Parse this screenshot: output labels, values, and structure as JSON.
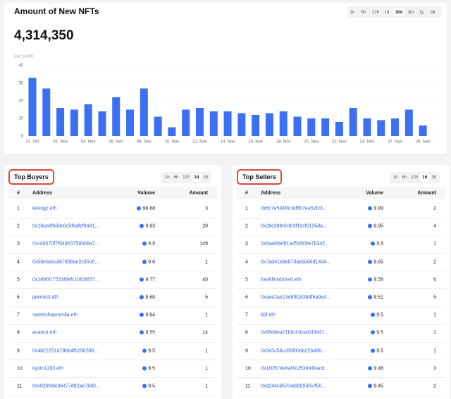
{
  "chart_data": {
    "type": "bar",
    "title": "Amount of New NFTs",
    "total": "4,314,350",
    "unit": "Unit: 10,000",
    "periods": [
      "1h",
      "6h",
      "12h",
      "1d",
      "30d",
      "3m",
      "1y",
      "All"
    ],
    "selected": "30d",
    "categories": [
      "31. Oct",
      null,
      "02. Nov",
      null,
      "04. Nov",
      null,
      "06. Nov",
      null,
      "08. Nov",
      null,
      "10. Nov",
      null,
      "12. Nov",
      null,
      "14. Nov",
      null,
      "16. Nov",
      null,
      "18. Nov",
      null,
      "20. Nov",
      null,
      "22. Nov",
      null,
      "24. Nov",
      null,
      "27. Nov",
      null,
      "29. Nov"
    ],
    "values": [
      33,
      27,
      16,
      15,
      18,
      14,
      22,
      15,
      27,
      11,
      5,
      15,
      16,
      14,
      14,
      13,
      12,
      13,
      14,
      11,
      10,
      10,
      8,
      16,
      10,
      9,
      10,
      15,
      6
    ],
    "color": "#3d6ff5",
    "ylim": [
      0,
      40
    ],
    "yticks": [
      0,
      10,
      20,
      30,
      40
    ],
    "grid": true
  },
  "tables": [
    {
      "title": "Top Buyers",
      "periods": [
        "1h",
        "6h",
        "12h",
        "1d",
        "3d"
      ],
      "selected": "1d",
      "columns": [
        "#",
        "Address",
        "Volume",
        "Amount"
      ],
      "rows": [
        [
          1,
          "keungz.eth",
          98.88,
          3
        ],
        [
          2,
          "0x18ae8f669c0c5f8afef9441...",
          9.93,
          20
        ],
        [
          3,
          "0xc48b70f7f04963756b08a7...",
          9.9,
          149
        ],
        [
          4,
          "0x58e6a5cd87d38ae2c3500...",
          9.8,
          1
        ],
        [
          5,
          "0x2896f175338fefc10838f37...",
          9.77,
          40
        ],
        [
          6,
          "jawniest.eth",
          9.68,
          5
        ],
        [
          7,
          "sweetshopmedia.eth",
          9.64,
          1
        ],
        [
          8,
          "avarice.eth",
          9.55,
          14
        ],
        [
          9,
          "0x4b22251d78bb4fb190288...",
          9.5,
          1
        ],
        [
          10,
          "kyoto1200.eth",
          9.5,
          1
        ],
        [
          11,
          "0xc02bfc8c96477d82ae78d3...",
          9.5,
          1
        ]
      ]
    },
    {
      "title": "Top Sellers",
      "periods": [
        "1h",
        "6h",
        "12h",
        "1d",
        "3d"
      ],
      "selected": "1d",
      "columns": [
        "#",
        "Address",
        "Volume",
        "Amount"
      ],
      "rows": [
        [
          1,
          "0x6c7e534f8c4dffb7ea52fc3...",
          9.99,
          2
        ],
        [
          2,
          "0x28c3bfe0cfe3f10cf0135da...",
          9.95,
          4
        ],
        [
          3,
          "0x6aa89ef81ad5d909e7b342...",
          9.8,
          1
        ],
        [
          4,
          "0x7ad41e8e873aeb586d14d4...",
          9.65,
          2
        ],
        [
          5,
          "franklinisb0red.eth",
          9.58,
          6
        ],
        [
          6,
          "0xaee2ae13ebf81d38df5a9ed...",
          9.51,
          5
        ],
        [
          7,
          "kbf.eth",
          9.5,
          1
        ],
        [
          8,
          "0x95d8ea71b9c03ced1f3847...",
          9.5,
          1
        ],
        [
          9,
          "0x0e5c56ccf0900da22b46b...",
          9.5,
          1
        ],
        [
          10,
          "0x180574e8af4c253b84bacd...",
          9.48,
          3
        ],
        [
          11,
          "0xd244c6b704dd32685cf50...",
          9.45,
          2
        ]
      ]
    }
  ]
}
